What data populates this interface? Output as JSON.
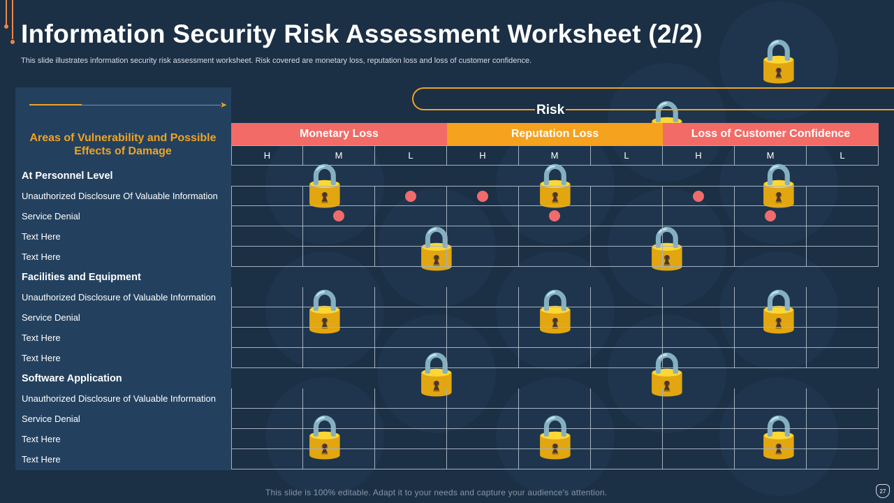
{
  "title": "Information Security Risk Assessment Worksheet (2/2)",
  "subtitle": "This slide illustrates information security risk assessment worksheet. Risk covered are monetary loss, reputation loss and loss of customer confidence.",
  "left_heading": "Areas of Vulnerability and Possible Effects of Damage",
  "risk_label": "Risk",
  "categories": [
    {
      "label": "Monetary Loss",
      "color": "#f26b66"
    },
    {
      "label": "Reputation  Loss",
      "color": "#f5a21f"
    },
    {
      "label": "Loss of Customer Confidence",
      "color": "#f26b66"
    }
  ],
  "levels": [
    "H",
    "M",
    "L",
    "H",
    "M",
    "L",
    "H",
    "M",
    "L"
  ],
  "rows": [
    {
      "label": "At Personnel Level",
      "section": true
    },
    {
      "label": "Unauthorized Disclosure Of Valuable Information",
      "section": false,
      "marks": [
        2,
        3,
        6
      ]
    },
    {
      "label": "Service Denial",
      "section": false,
      "marks": [
        1,
        4,
        7
      ]
    },
    {
      "label": "Text Here",
      "section": false,
      "marks": []
    },
    {
      "label": "Text Here",
      "section": false,
      "marks": []
    },
    {
      "label": "Facilities and Equipment",
      "section": true
    },
    {
      "label": "Unauthorized Disclosure of Valuable Information",
      "section": false,
      "marks": []
    },
    {
      "label": "Service Denial",
      "section": false,
      "marks": []
    },
    {
      "label": "Text Here",
      "section": false,
      "marks": []
    },
    {
      "label": "Text Here",
      "section": false,
      "marks": []
    },
    {
      "label": "Software Application",
      "section": true
    },
    {
      "label": "Unauthorized Disclosure of Valuable Information",
      "section": false,
      "marks": []
    },
    {
      "label": "Service Denial",
      "section": false,
      "marks": []
    },
    {
      "label": "Text Here",
      "section": false,
      "marks": []
    },
    {
      "label": "Text Here",
      "section": false,
      "marks": []
    }
  ],
  "footer": "This slide is 100% editable. Adapt it to your needs and capture your audience's attention.",
  "page_number": "27",
  "colors": {
    "accent": "#f0a323",
    "dot": "#f06b6b",
    "background": "#1b2f45",
    "panel": "#23415f"
  }
}
